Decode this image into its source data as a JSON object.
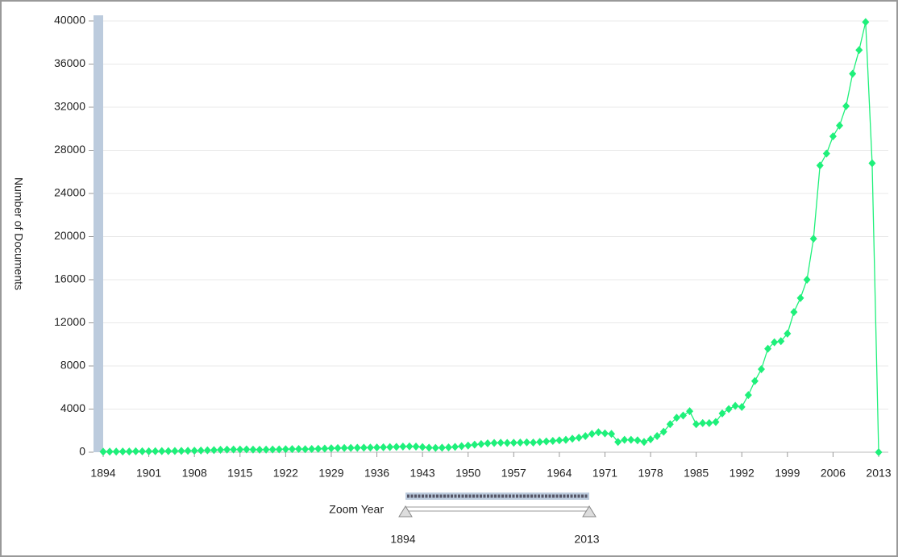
{
  "chart_data": {
    "type": "line",
    "y_label": "Number of Documents",
    "x": [
      1894,
      1895,
      1896,
      1897,
      1898,
      1899,
      1900,
      1901,
      1902,
      1903,
      1904,
      1905,
      1906,
      1907,
      1908,
      1909,
      1910,
      1911,
      1912,
      1913,
      1914,
      1915,
      1916,
      1917,
      1918,
      1919,
      1920,
      1921,
      1922,
      1923,
      1924,
      1925,
      1926,
      1927,
      1928,
      1929,
      1930,
      1931,
      1932,
      1933,
      1934,
      1935,
      1936,
      1937,
      1938,
      1939,
      1940,
      1941,
      1942,
      1943,
      1944,
      1945,
      1946,
      1947,
      1948,
      1949,
      1950,
      1951,
      1952,
      1953,
      1954,
      1955,
      1956,
      1957,
      1958,
      1959,
      1960,
      1961,
      1962,
      1963,
      1964,
      1965,
      1966,
      1967,
      1968,
      1969,
      1970,
      1971,
      1972,
      1973,
      1974,
      1975,
      1976,
      1977,
      1978,
      1979,
      1980,
      1981,
      1982,
      1983,
      1984,
      1985,
      1986,
      1987,
      1988,
      1989,
      1990,
      1991,
      1992,
      1993,
      1994,
      1995,
      1996,
      1997,
      1998,
      1999,
      2000,
      2001,
      2002,
      2003,
      2004,
      2005,
      2006,
      2007,
      2008,
      2009,
      2010,
      2011,
      2012,
      2013
    ],
    "series": [
      {
        "name": "Documents",
        "color": "#1ef07a",
        "values": [
          50,
          60,
          60,
          70,
          70,
          80,
          80,
          80,
          90,
          100,
          100,
          110,
          120,
          130,
          140,
          160,
          180,
          200,
          220,
          240,
          250,
          250,
          260,
          240,
          230,
          240,
          250,
          260,
          280,
          290,
          300,
          280,
          300,
          320,
          340,
          360,
          380,
          390,
          400,
          410,
          420,
          430,
          440,
          460,
          480,
          500,
          520,
          540,
          520,
          480,
          420,
          400,
          420,
          450,
          500,
          560,
          620,
          700,
          760,
          820,
          860,
          880,
          860,
          880,
          900,
          920,
          900,
          950,
          1000,
          1050,
          1100,
          1150,
          1250,
          1350,
          1500,
          1700,
          1850,
          1750,
          1700,
          950,
          1150,
          1150,
          1100,
          950,
          1200,
          1500,
          1900,
          2600,
          3200,
          3400,
          3800,
          2600,
          2700,
          2700,
          2800,
          3600,
          4000,
          4300,
          4200,
          5300,
          6600,
          7700,
          9600,
          10200,
          10300,
          11000,
          13000,
          14300,
          16000,
          19800,
          26600,
          27700,
          29300,
          30300,
          32100,
          35100,
          37300,
          39900,
          26800,
          0
        ]
      }
    ],
    "xlim": [
      1894,
      2013
    ],
    "xticks": [
      1894,
      1901,
      1908,
      1915,
      1922,
      1929,
      1936,
      1943,
      1950,
      1957,
      1964,
      1971,
      1978,
      1985,
      1992,
      1999,
      2006,
      2013
    ],
    "ylim": [
      0,
      40000
    ],
    "yticks": [
      0,
      4000,
      8000,
      12000,
      16000,
      20000,
      24000,
      28000,
      32000,
      36000,
      40000
    ],
    "grid": true,
    "zoom": {
      "label": "Zoom Year",
      "start": 1894,
      "end": 2013
    }
  }
}
